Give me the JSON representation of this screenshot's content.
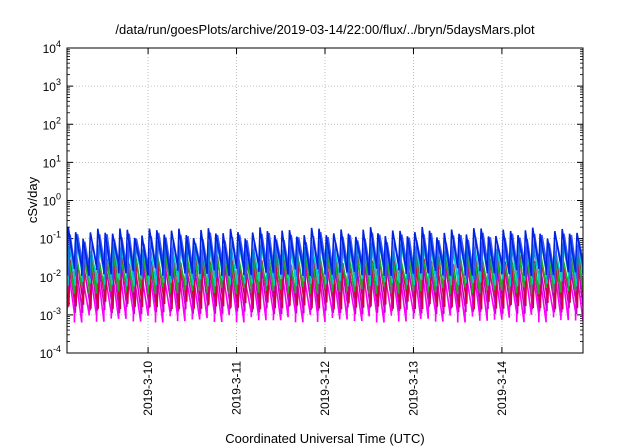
{
  "chart_data": {
    "type": "line",
    "title": "/data/run/goesPlots/archive/2019-03-14/22:00/flux/../bryn/5daysMars.plot",
    "xlabel": "Coordinated Universal Time (UTC)",
    "ylabel": "cSv/day",
    "yscale": "log",
    "ylim": [
      0.0001,
      10000
    ],
    "y_ticks": [
      {
        "base": "10",
        "exp": "-4"
      },
      {
        "base": "10",
        "exp": "-3"
      },
      {
        "base": "10",
        "exp": "-2"
      },
      {
        "base": "10",
        "exp": "-1"
      },
      {
        "base": "10",
        "exp": "0"
      },
      {
        "base": "10",
        "exp": "1"
      },
      {
        "base": "10",
        "exp": "2"
      },
      {
        "base": "10",
        "exp": "3"
      },
      {
        "base": "10",
        "exp": "4"
      }
    ],
    "x_range": [
      "2019-03-09 02:00",
      "2019-03-14 22:00"
    ],
    "x_ticks": [
      "2019-3-10",
      "2019-3-11",
      "2019-3-12",
      "2019-3-13",
      "2019-3-14"
    ],
    "grid": true,
    "legend": "none",
    "sawtooth_period_hours": 2,
    "series": [
      {
        "color": "#ff00ff",
        "peak": 0.012,
        "trough": 0.0009
      },
      {
        "color": "#cc00cc",
        "peak": 0.02,
        "trough": 0.0015
      },
      {
        "color": "#d00040",
        "peak": 0.03,
        "trough": 0.002
      },
      {
        "color": "#22aa22",
        "peak": 0.045,
        "trough": 0.005
      },
      {
        "color": "#00cccc",
        "peak": 0.07,
        "trough": 0.008
      },
      {
        "color": "#3355ff",
        "peak": 0.11,
        "trough": 0.012
      },
      {
        "color": "#0022dd",
        "peak": 0.15,
        "trough": 0.015
      }
    ]
  }
}
